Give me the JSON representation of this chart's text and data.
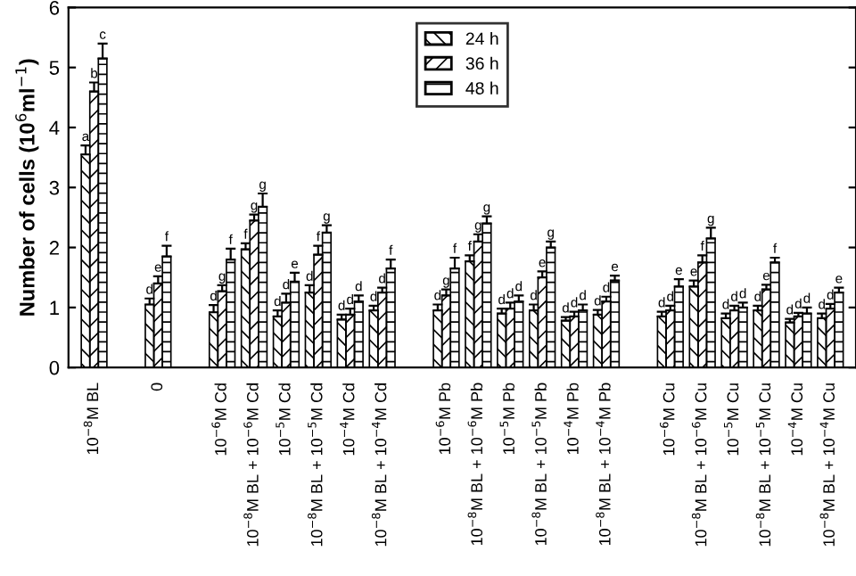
{
  "chart_data": {
    "type": "bar",
    "ylabel": "Number of cells (10$^{6}$ml$^{−1}$)",
    "categories": [
      "10$^{−8}$M BL",
      null,
      "0",
      null,
      "10$^{−6}$M Cd",
      "10$^{−8}$M BL + 10$^{−6}$M Cd",
      "10$^{−5}$M Cd",
      "10$^{−8}$M BL + 10$^{−5}$M Cd",
      "10$^{−4}$M Cd",
      "10$^{−8}$M BL + 10$^{−4}$M Cd",
      null,
      "10$^{−6}$M Pb",
      "10$^{−8}$M BL + 10$^{−6}$M Pb",
      "10$^{−5}$M Pb",
      "10$^{−8}$M BL + 10$^{−5}$M Pb",
      "10$^{−4}$M Pb",
      "10$^{−8}$M BL + 10$^{−4}$M Pb",
      null,
      "10$^{−6}$M Cu",
      "10$^{−8}$M BL + 10$^{−6}$M Cu",
      "10$^{−5}$M Cu",
      "10$^{−8}$M BL + 10$^{−5}$M Cu",
      "10$^{−4}$M Cu",
      "10$^{−8}$M BL + 10$^{−4}$M Cu"
    ],
    "series": [
      {
        "name": "24 h",
        "color": "#000000",
        "values": [
          3.55,
          null,
          1.05,
          null,
          0.92,
          1.97,
          0.85,
          1.25,
          0.8,
          0.95,
          null,
          0.95,
          1.77,
          0.9,
          0.95,
          0.78,
          0.88,
          null,
          0.85,
          1.35,
          0.82,
          0.95,
          0.75,
          0.82
        ],
        "errors": [
          0.15,
          null,
          0.1,
          null,
          0.12,
          0.1,
          0.1,
          0.12,
          0.08,
          0.08,
          null,
          0.1,
          0.1,
          0.08,
          0.1,
          0.06,
          0.08,
          null,
          0.08,
          0.1,
          0.08,
          0.08,
          0.06,
          0.08
        ],
        "value_labels": [
          "a",
          null,
          "d",
          null,
          "d",
          "f",
          "d",
          "d",
          "d",
          "d",
          null,
          "d",
          "f",
          "d",
          "d",
          "d",
          "d",
          null,
          "d",
          "e",
          "d",
          "d",
          "d",
          "d"
        ]
      },
      {
        "name": "36 h",
        "color": "#000000",
        "values": [
          4.6,
          null,
          1.4,
          null,
          1.27,
          2.45,
          1.08,
          1.88,
          0.88,
          1.25,
          null,
          1.2,
          2.1,
          0.98,
          1.5,
          0.85,
          1.1,
          null,
          0.95,
          1.75,
          0.95,
          1.3,
          0.85,
          0.98
        ],
        "errors": [
          0.15,
          null,
          0.12,
          null,
          0.1,
          0.1,
          0.15,
          0.15,
          0.1,
          0.08,
          null,
          0.1,
          0.12,
          0.1,
          0.1,
          0.08,
          0.08,
          null,
          0.08,
          0.12,
          0.08,
          0.08,
          0.06,
          0.08
        ],
        "value_labels": [
          "b",
          null,
          "e",
          null,
          "g",
          "g",
          "d",
          "f",
          "d",
          "d",
          null,
          "g",
          "g",
          "d",
          "e",
          "d",
          "d",
          null,
          "d",
          "f",
          "d",
          "e",
          "d",
          "d"
        ]
      },
      {
        "name": "48 h",
        "color": "#000000",
        "values": [
          5.15,
          null,
          1.85,
          null,
          1.8,
          2.68,
          1.43,
          2.25,
          1.1,
          1.65,
          null,
          1.65,
          2.4,
          1.1,
          2.0,
          0.95,
          1.45,
          null,
          1.35,
          2.15,
          1.0,
          1.75,
          0.9,
          1.25
        ],
        "errors": [
          0.25,
          null,
          0.18,
          null,
          0.18,
          0.22,
          0.15,
          0.12,
          0.1,
          0.15,
          null,
          0.18,
          0.12,
          0.1,
          0.1,
          0.1,
          0.08,
          null,
          0.12,
          0.18,
          0.08,
          0.08,
          0.1,
          0.08
        ],
        "value_labels": [
          "c",
          null,
          "f",
          null,
          "f",
          "g",
          "e",
          "g",
          "d",
          "f",
          null,
          "f",
          "g",
          "d",
          "g",
          "d",
          "e",
          null,
          "e",
          "g",
          "d",
          "f",
          "d",
          "e"
        ]
      }
    ],
    "ylim": [
      0,
      6
    ],
    "yticks": [
      0,
      1,
      2,
      3,
      4,
      5,
      6
    ],
    "legend": "top",
    "grid": false
  }
}
